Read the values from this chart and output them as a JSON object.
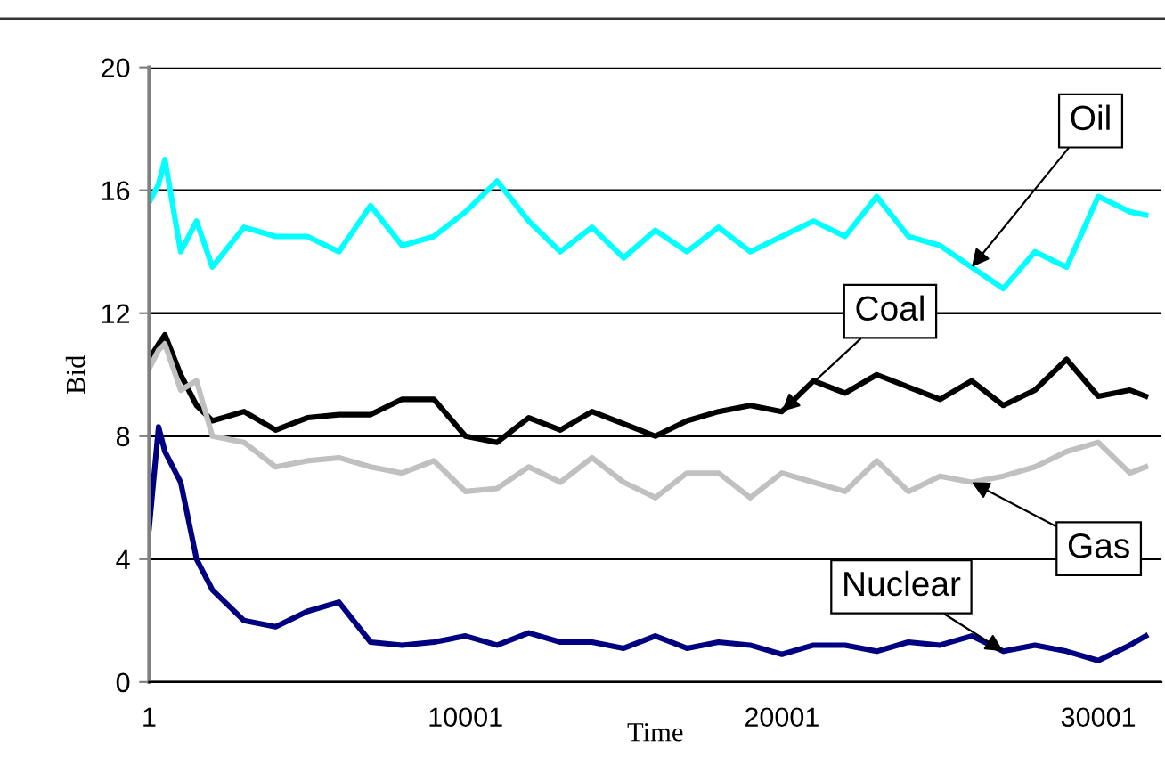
{
  "chart_data": {
    "type": "line",
    "xlabel": "Time",
    "ylabel": "Bid",
    "x": [
      1,
      300,
      500,
      1000,
      1500,
      2000,
      3000,
      4000,
      5000,
      6000,
      7000,
      8000,
      9000,
      10000,
      11000,
      12000,
      13000,
      14000,
      15000,
      16000,
      17000,
      18000,
      19000,
      20000,
      21000,
      22000,
      23000,
      24000,
      25000,
      26000,
      27000,
      28000,
      29000,
      30000,
      31000,
      31500
    ],
    "series": [
      {
        "name": "Oil",
        "color": "#00ffff",
        "values": [
          15.6,
          16.2,
          17.0,
          14.0,
          15.0,
          13.5,
          14.8,
          14.5,
          14.5,
          14.0,
          15.5,
          14.2,
          14.5,
          15.3,
          16.3,
          15.0,
          14.0,
          14.8,
          13.8,
          14.7,
          14.0,
          14.8,
          14.0,
          14.5,
          15.0,
          14.5,
          15.8,
          14.5,
          14.2,
          13.5,
          12.8,
          14.0,
          13.5,
          15.8,
          15.3,
          15.2
        ]
      },
      {
        "name": "Coal",
        "color": "#000000",
        "values": [
          10.5,
          11.0,
          11.3,
          10.0,
          9.0,
          8.5,
          8.8,
          8.2,
          8.6,
          8.7,
          8.7,
          9.2,
          9.2,
          8.0,
          7.8,
          8.6,
          8.2,
          8.8,
          8.4,
          8.0,
          8.5,
          8.8,
          9.0,
          8.8,
          9.8,
          9.4,
          10.0,
          9.6,
          9.2,
          9.8,
          9.0,
          9.5,
          10.5,
          9.3,
          9.5,
          9.3
        ]
      },
      {
        "name": "Gas",
        "color": "#c0c0c0",
        "values": [
          10.2,
          10.8,
          11.0,
          9.5,
          9.8,
          8.0,
          7.8,
          7.0,
          7.2,
          7.3,
          7.0,
          6.8,
          7.2,
          6.2,
          6.3,
          7.0,
          6.5,
          7.3,
          6.5,
          6.0,
          6.8,
          6.8,
          6.0,
          6.8,
          6.5,
          6.2,
          7.2,
          6.2,
          6.7,
          6.5,
          6.7,
          7.0,
          7.5,
          7.8,
          6.8,
          7.0
        ]
      },
      {
        "name": "Nuclear",
        "color": "#000080",
        "values": [
          5.0,
          8.3,
          7.5,
          6.5,
          4.0,
          3.0,
          2.0,
          1.8,
          2.3,
          2.6,
          1.3,
          1.2,
          1.3,
          1.5,
          1.2,
          1.6,
          1.3,
          1.3,
          1.1,
          1.5,
          1.1,
          1.3,
          1.2,
          0.9,
          1.2,
          1.2,
          1.0,
          1.3,
          1.2,
          1.5,
          1.0,
          1.2,
          1.0,
          0.7,
          1.2,
          1.5
        ]
      }
    ],
    "xlim": [
      1,
      32000
    ],
    "xticks": [
      1,
      10001,
      20001,
      30001
    ],
    "ylim": [
      0,
      20
    ],
    "yticks": [
      0,
      4,
      8,
      12,
      16,
      20
    ],
    "grid": "y"
  }
}
